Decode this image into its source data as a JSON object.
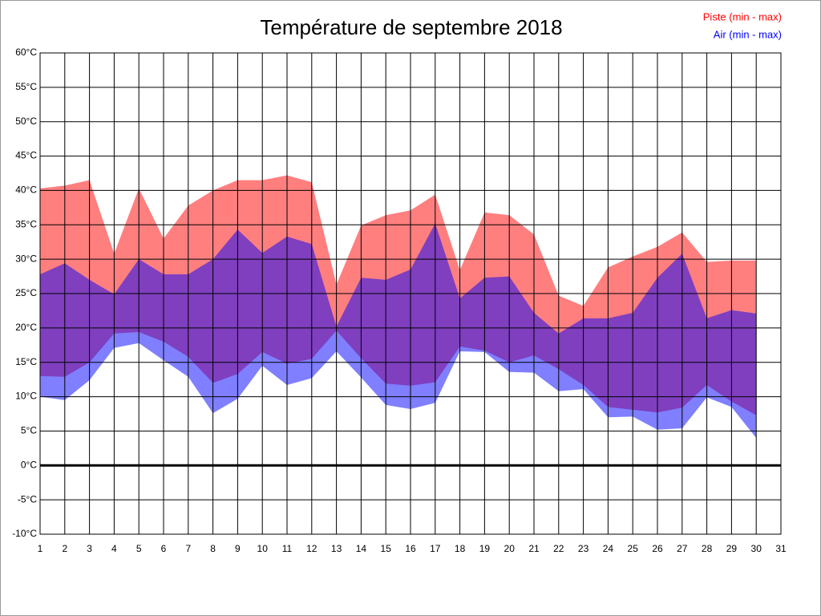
{
  "chart_data": {
    "type": "range_area",
    "title": "Température de septembre 2018",
    "x": [
      1,
      2,
      3,
      4,
      5,
      6,
      7,
      8,
      9,
      10,
      11,
      12,
      13,
      14,
      15,
      16,
      17,
      18,
      19,
      20,
      21,
      22,
      23,
      24,
      25,
      26,
      27,
      28,
      29,
      30
    ],
    "series": [
      {
        "name": "Piste (min - max)",
        "color": "#ff0000",
        "low": [
          13,
          12.9,
          15,
          19.2,
          19.4,
          18,
          15.8,
          12,
          13.3,
          16.5,
          14.8,
          15.5,
          19.6,
          15.6,
          11.9,
          11.6,
          12.1,
          17.3,
          16.7,
          15,
          16,
          14,
          11.7,
          8.5,
          8.1,
          7.7,
          8.4,
          11.7,
          9.3,
          7.3
        ],
        "high": [
          40.3,
          40.7,
          41.5,
          30.8,
          40.3,
          33,
          37.8,
          40,
          41.5,
          41.5,
          42.2,
          41.2,
          26.3,
          34.9,
          36.4,
          37.1,
          39.4,
          28.4,
          36.8,
          36.4,
          33.6,
          24.7,
          23.2,
          28.8,
          30.4,
          31.8,
          33.9,
          29.6,
          29.8,
          29.8
        ]
      },
      {
        "name": "Air (min - max)",
        "color": "#0000ff",
        "low": [
          10,
          9.5,
          12.4,
          17.1,
          17.8,
          15.3,
          12.9,
          7.6,
          9.7,
          14.5,
          11.7,
          12.7,
          16.6,
          12.8,
          8.8,
          8.2,
          9.1,
          16.6,
          16.5,
          13.6,
          13.5,
          10.8,
          11.1,
          7,
          7.1,
          5.2,
          5.4,
          9.9,
          8.5,
          4
        ],
        "high": [
          27.8,
          29.4,
          27,
          24.9,
          30,
          27.8,
          27.8,
          30,
          34.3,
          30.9,
          33.3,
          32.2,
          20.2,
          27.3,
          27,
          28.5,
          35.2,
          24.3,
          27.3,
          27.5,
          22.2,
          19.2,
          21.4,
          21.4,
          22.2,
          27.3,
          30.8,
          21.4,
          22.6,
          22.1
        ]
      }
    ],
    "xlim": [
      1,
      31
    ],
    "xticks": [
      1,
      2,
      3,
      4,
      5,
      6,
      7,
      8,
      9,
      10,
      11,
      12,
      13,
      14,
      15,
      16,
      17,
      18,
      19,
      20,
      21,
      22,
      23,
      24,
      25,
      26,
      27,
      28,
      29,
      30,
      31
    ],
    "ylim": [
      -10,
      60
    ],
    "yticks": [
      {
        "value": -10,
        "label": "-10°C"
      },
      {
        "value": -5,
        "label": "-5°C"
      },
      {
        "value": 0,
        "label": "0°C"
      },
      {
        "value": 5,
        "label": "5°C"
      },
      {
        "value": 10,
        "label": "10°C"
      },
      {
        "value": 15,
        "label": "15°C"
      },
      {
        "value": 20,
        "label": "20°C"
      },
      {
        "value": 25,
        "label": "25°C"
      },
      {
        "value": 30,
        "label": "30°C"
      },
      {
        "value": 35,
        "label": "35°C"
      },
      {
        "value": 40,
        "label": "40°C"
      },
      {
        "value": 45,
        "label": "45°C"
      },
      {
        "value": 50,
        "label": "50°C"
      },
      {
        "value": 55,
        "label": "55°C"
      },
      {
        "value": 60,
        "label": "60°C"
      }
    ],
    "grid": true,
    "legend": "top-right"
  }
}
